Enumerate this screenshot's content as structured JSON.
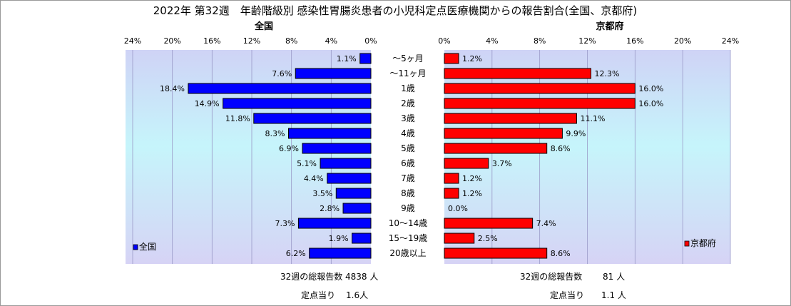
{
  "title": "2022年 第32週　年齢階級別 感染性胃腸炎患者の小児科定点医療機関からの報告割合(全国、京都府)",
  "chart_data": {
    "type": "bar",
    "categories": [
      "～5ヶ月",
      "～11ヶ月",
      "1歳",
      "2歳",
      "3歳",
      "4歳",
      "5歳",
      "6歳",
      "7歳",
      "8歳",
      "9歳",
      "10～14歳",
      "15～19歳",
      "20歳以上"
    ],
    "xlim": [
      0,
      24
    ],
    "ticks": [
      "0%",
      "4%",
      "8%",
      "12%",
      "16%",
      "20%",
      "24%"
    ],
    "panels": [
      {
        "title": "全国",
        "legend": "全国",
        "color": "#0000ff",
        "values": [
          1.1,
          7.6,
          18.4,
          14.9,
          11.8,
          8.3,
          6.9,
          5.1,
          4.4,
          3.5,
          2.8,
          7.3,
          1.9,
          6.2
        ],
        "labels": [
          "1.1%",
          "7.6%",
          "18.4%",
          "14.9%",
          "11.8%",
          "8.3%",
          "6.9%",
          "5.1%",
          "4.4%",
          "3.5%",
          "2.8%",
          "7.3%",
          "1.9%",
          "6.2%"
        ],
        "total_label": "32週の総報告数",
        "total_value": "4838 人",
        "per_label": "定点当り",
        "per_value": "1.6人"
      },
      {
        "title": "京都府",
        "legend": "京都府",
        "color": "#ff0000",
        "values": [
          1.2,
          12.3,
          16.0,
          16.0,
          11.1,
          9.9,
          8.6,
          3.7,
          1.2,
          1.2,
          0.0,
          7.4,
          2.5,
          8.6
        ],
        "labels": [
          "1.2%",
          "12.3%",
          "16.0%",
          "16.0%",
          "11.1%",
          "9.9%",
          "8.6%",
          "3.7%",
          "1.2%",
          "1.2%",
          "0.0%",
          "7.4%",
          "2.5%",
          "8.6%"
        ],
        "total_label": "32週の総報告数",
        "total_value": "81 人",
        "per_label": "定点当り",
        "per_value": "1.1 人"
      }
    ]
  }
}
